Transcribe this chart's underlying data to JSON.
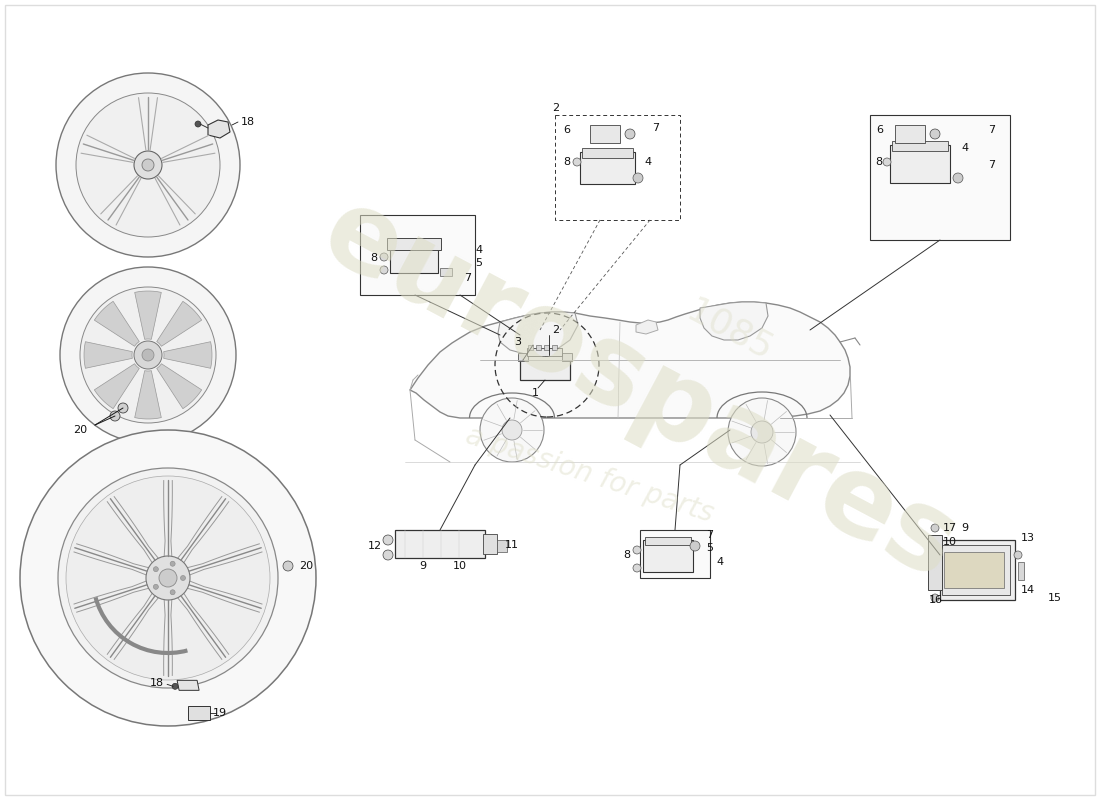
{
  "bg_color": "#ffffff",
  "line_color": "#1a1a1a",
  "gray1": "#aaaaaa",
  "gray2": "#888888",
  "gray3": "#555555",
  "wm1": "#d8d8c0",
  "wm2": "#e0e0c8"
}
